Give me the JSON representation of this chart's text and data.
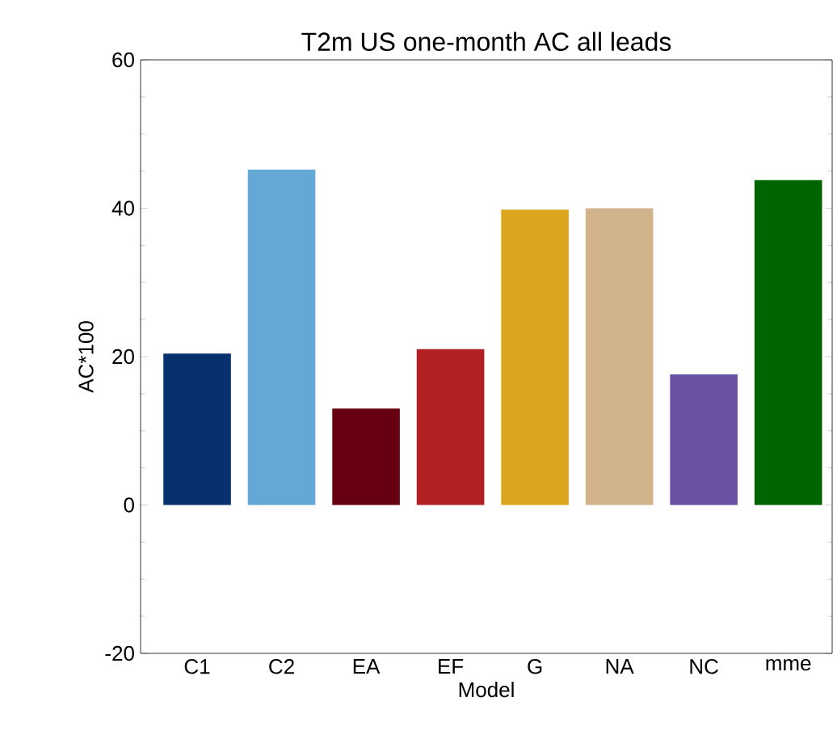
{
  "chart_data": {
    "type": "bar",
    "title": "T2m US one-month AC all leads",
    "xlabel": "Model",
    "ylabel": "AC*100",
    "categories": [
      "C1",
      "C2",
      "EA",
      "EF",
      "G",
      "NA",
      "NC",
      "mme"
    ],
    "values": [
      20.4,
      45.2,
      13.0,
      21.0,
      39.8,
      40.0,
      17.6,
      43.8
    ],
    "colors": [
      "#06306e",
      "#64a9d6",
      "#660010",
      "#b22024",
      "#dba61e",
      "#d2b48c",
      "#6a51a3",
      "#006400"
    ],
    "ylim": [
      -20,
      60
    ],
    "yticks": [
      -20,
      0,
      20,
      40,
      60
    ],
    "grid": false
  }
}
